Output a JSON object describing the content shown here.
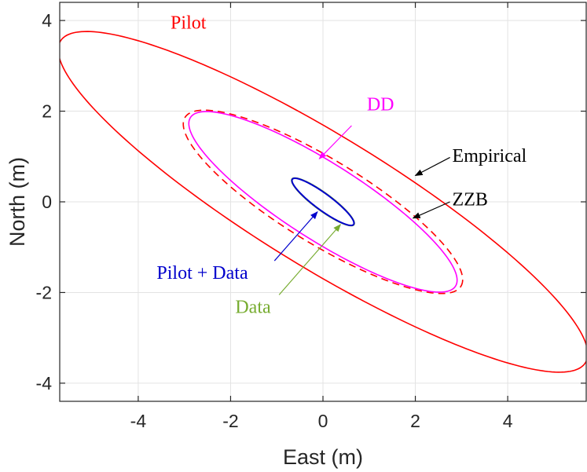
{
  "chart_data": {
    "type": "line",
    "xlabel": "East (m)",
    "ylabel": "North (m)",
    "xlim": [
      -5.7,
      5.7
    ],
    "ylim": [
      -4.4,
      4.4
    ],
    "xticks": [
      -4,
      -2,
      0,
      2,
      4
    ],
    "yticks": [
      -4,
      -2,
      0,
      2,
      4
    ],
    "xtick_labels": [
      "-4",
      "-2",
      "0",
      "2",
      "4"
    ],
    "ytick_labels": [
      "-4",
      "-2",
      "0",
      "2",
      "4"
    ],
    "grid": true,
    "series": [
      {
        "name": "Pilot",
        "style": "solid",
        "color": "#ff0000",
        "center": [
          0,
          0
        ],
        "semi_major": 6.7,
        "semi_minor": 1.45,
        "angle_deg": -32
      },
      {
        "name": "Pilot",
        "style": "dashed",
        "color": "#ff0000",
        "center": [
          0,
          0
        ],
        "semi_major": 3.52,
        "semi_minor": 0.92,
        "angle_deg": -32
      },
      {
        "name": "DD",
        "style": "solid",
        "color": "#ff00ff",
        "center": [
          0,
          0
        ],
        "semi_major": 3.42,
        "semi_minor": 0.84,
        "angle_deg": -33
      },
      {
        "name": "Data",
        "style": "solid",
        "color": "#77ac30",
        "center": [
          0,
          0
        ],
        "semi_major": 0.84,
        "semi_minor": 0.19,
        "angle_deg": -37
      },
      {
        "name": "Pilot + Data",
        "style": "solid",
        "color": "#0000cc",
        "center": [
          0,
          0
        ],
        "semi_major": 0.83,
        "semi_minor": 0.18,
        "angle_deg": -37
      }
    ],
    "annotations": [
      {
        "text": "Pilot",
        "color": "#ff0000",
        "text_at": [
          -3.3,
          3.82
        ],
        "arrow": false
      },
      {
        "text": "DD",
        "color": "#ff00ff",
        "text_at": [
          0.95,
          2.02
        ],
        "arrow_from": [
          0.62,
          1.68
        ],
        "arrow_to": [
          -0.08,
          0.95
        ]
      },
      {
        "text": "Empirical",
        "color": "#000000",
        "text_at": [
          2.8,
          0.88
        ],
        "arrow_from": [
          2.75,
          0.98
        ],
        "arrow_to": [
          2.0,
          0.58
        ]
      },
      {
        "text": "ZZB",
        "color": "#000000",
        "text_at": [
          2.8,
          -0.08
        ],
        "arrow_from": [
          2.75,
          0.0
        ],
        "arrow_to": [
          1.95,
          -0.36
        ]
      },
      {
        "text": "Pilot + Data",
        "color": "#0000cc",
        "text_at": [
          -3.6,
          -1.7
        ],
        "arrow_from": [
          -1.05,
          -1.3
        ],
        "arrow_to": [
          -0.12,
          -0.22
        ]
      },
      {
        "text": "Data",
        "color": "#77ac30",
        "text_at": [
          -1.9,
          -2.45
        ],
        "arrow_from": [
          -0.95,
          -2.05
        ],
        "arrow_to": [
          0.38,
          -0.5
        ]
      }
    ]
  }
}
